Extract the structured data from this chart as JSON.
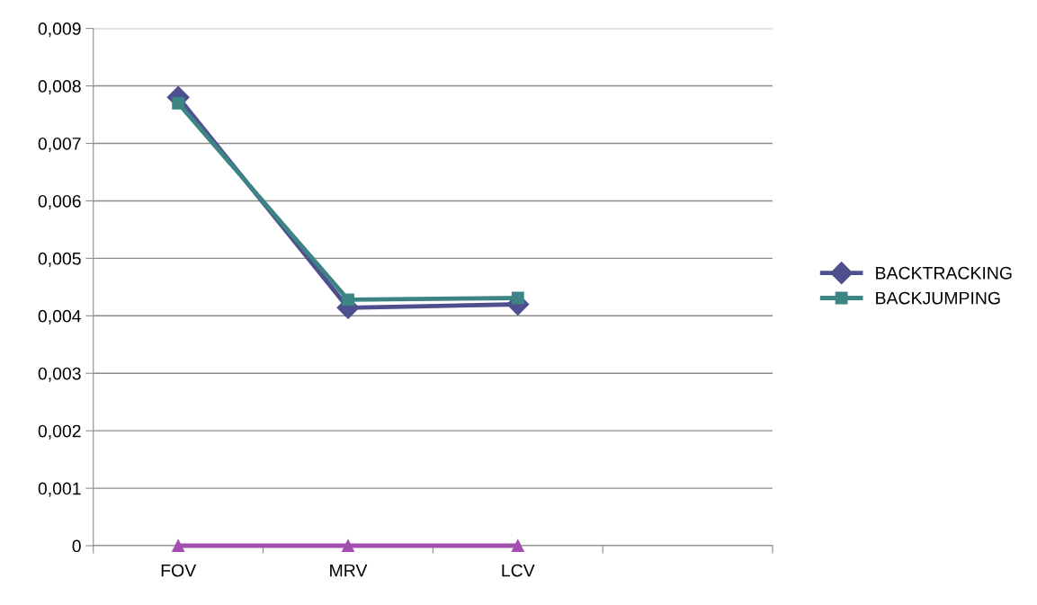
{
  "chart_data": {
    "type": "line",
    "categories": [
      "FOV",
      "MRV",
      "LCV",
      null
    ],
    "series": [
      {
        "name": "BACKTRACKING",
        "color": "#4e4f8e",
        "marker": "diamond",
        "values": [
          0.0078,
          0.00414,
          0.0042,
          null
        ]
      },
      {
        "name": "BACKJUMPING",
        "color": "#3d8585",
        "marker": "square",
        "values": [
          0.0077,
          0.00428,
          0.00431,
          null
        ]
      },
      {
        "color": "#a24fae",
        "marker": "triangle",
        "values": [
          0,
          0,
          0,
          null
        ]
      }
    ],
    "ylim": [
      0,
      0.009
    ],
    "yticks": [
      0,
      {
        "value": 0.001,
        "label": "0,001"
      },
      {
        "value": 0.002,
        "label": "0,002"
      },
      {
        "value": 0.003,
        "label": "0,003"
      },
      {
        "value": 0.004,
        "label": "0,004"
      },
      {
        "value": 0.005,
        "label": "0,005"
      },
      {
        "value": 0.006,
        "label": "0,006"
      },
      {
        "value": 0.007,
        "label": "0,007"
      },
      {
        "value": 0.008,
        "label": "0,008"
      },
      {
        "value": 0.009,
        "label": "0,009"
      }
    ],
    "grid": "y",
    "legend": "right",
    "line_style": "solid"
  }
}
